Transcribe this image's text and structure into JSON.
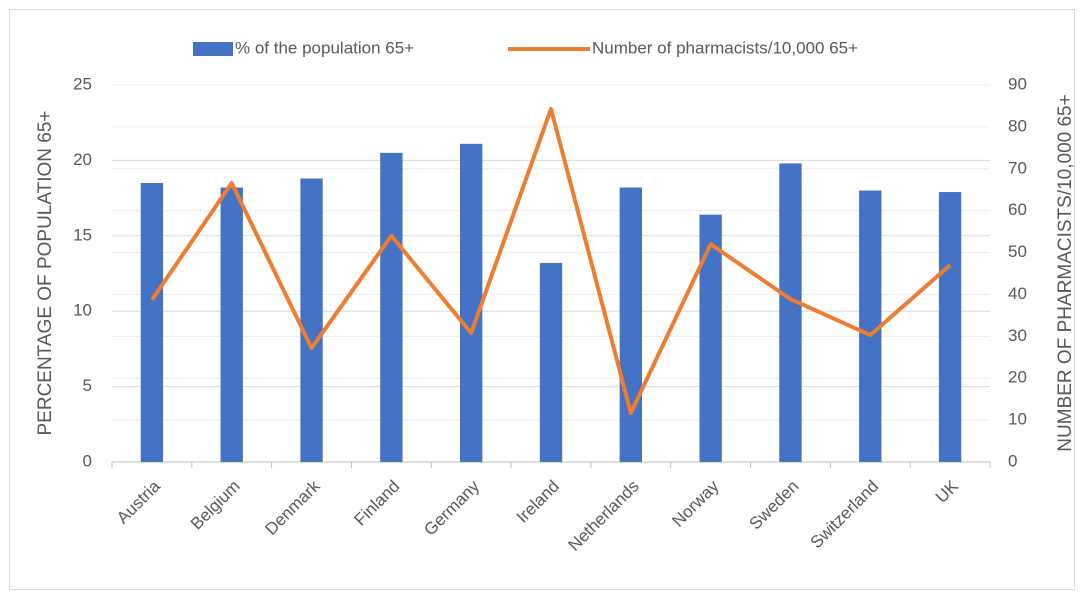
{
  "chart_data": {
    "type": "bar_line",
    "categories": [
      "Austria",
      "Belgium",
      "Denmark",
      "Finland",
      "Germany",
      "Ireland",
      "Netherlands",
      "Norway",
      "Sweden",
      "Switzerland",
      "UK"
    ],
    "series": [
      {
        "name": "% of the population 65+",
        "color": "#4472c4",
        "type": "bar",
        "values": [
          18.5,
          18.2,
          18.8,
          20.5,
          21.1,
          13.2,
          18.2,
          16.4,
          19.8,
          18.0,
          17.9
        ]
      },
      {
        "name": "Number of pharmacists/10,000 65+",
        "color": "#ed7d31",
        "type": "line",
        "axis": "y2",
        "values": [
          38.7,
          66.6,
          27.2,
          54,
          30.8,
          84.3,
          11.7,
          52,
          38.9,
          30.3,
          47
        ]
      }
    ],
    "y_label": "PERCENTAGE OF POPULATION 65+",
    "y2_label": "NUMBER OF PHARMACISTS/10,000 65+",
    "ylim": [
      0,
      25
    ],
    "yticks": [
      0,
      5,
      10,
      15,
      20,
      25
    ],
    "y2lim": [
      0,
      90
    ],
    "y2ticks": [
      0,
      10,
      20,
      30,
      40,
      50,
      60,
      70,
      80,
      90
    ],
    "grid": true,
    "legend": "top"
  }
}
